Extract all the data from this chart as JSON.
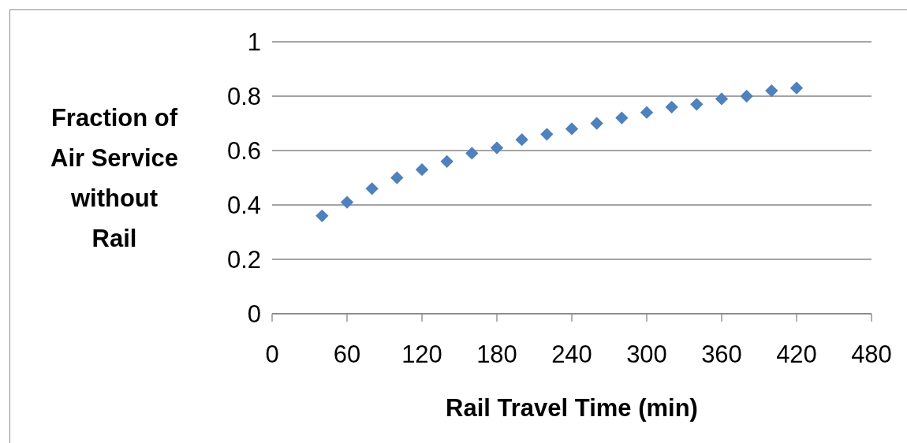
{
  "chart_data": {
    "type": "scatter",
    "xlabel": "Rail Travel Time (min)",
    "ylabel": "Fraction of Air Service without Rail",
    "x": [
      40,
      60,
      80,
      100,
      120,
      140,
      160,
      180,
      200,
      220,
      240,
      260,
      280,
      300,
      320,
      340,
      360,
      380,
      400,
      420
    ],
    "series": [
      {
        "color": "#4f81bd",
        "values": [
          0.36,
          0.41,
          0.46,
          0.5,
          0.53,
          0.56,
          0.59,
          0.61,
          0.64,
          0.66,
          0.68,
          0.7,
          0.72,
          0.74,
          0.76,
          0.77,
          0.79,
          0.8,
          0.82,
          0.83
        ]
      }
    ],
    "xlim": [
      0,
      480
    ],
    "xticks": [
      0,
      60,
      120,
      180,
      240,
      300,
      360,
      420,
      480
    ],
    "ylim": [
      0,
      1
    ],
    "yticks": [
      0,
      0.2,
      0.4,
      0.6,
      0.8,
      1
    ],
    "grid": "y",
    "marker": "diamond"
  }
}
